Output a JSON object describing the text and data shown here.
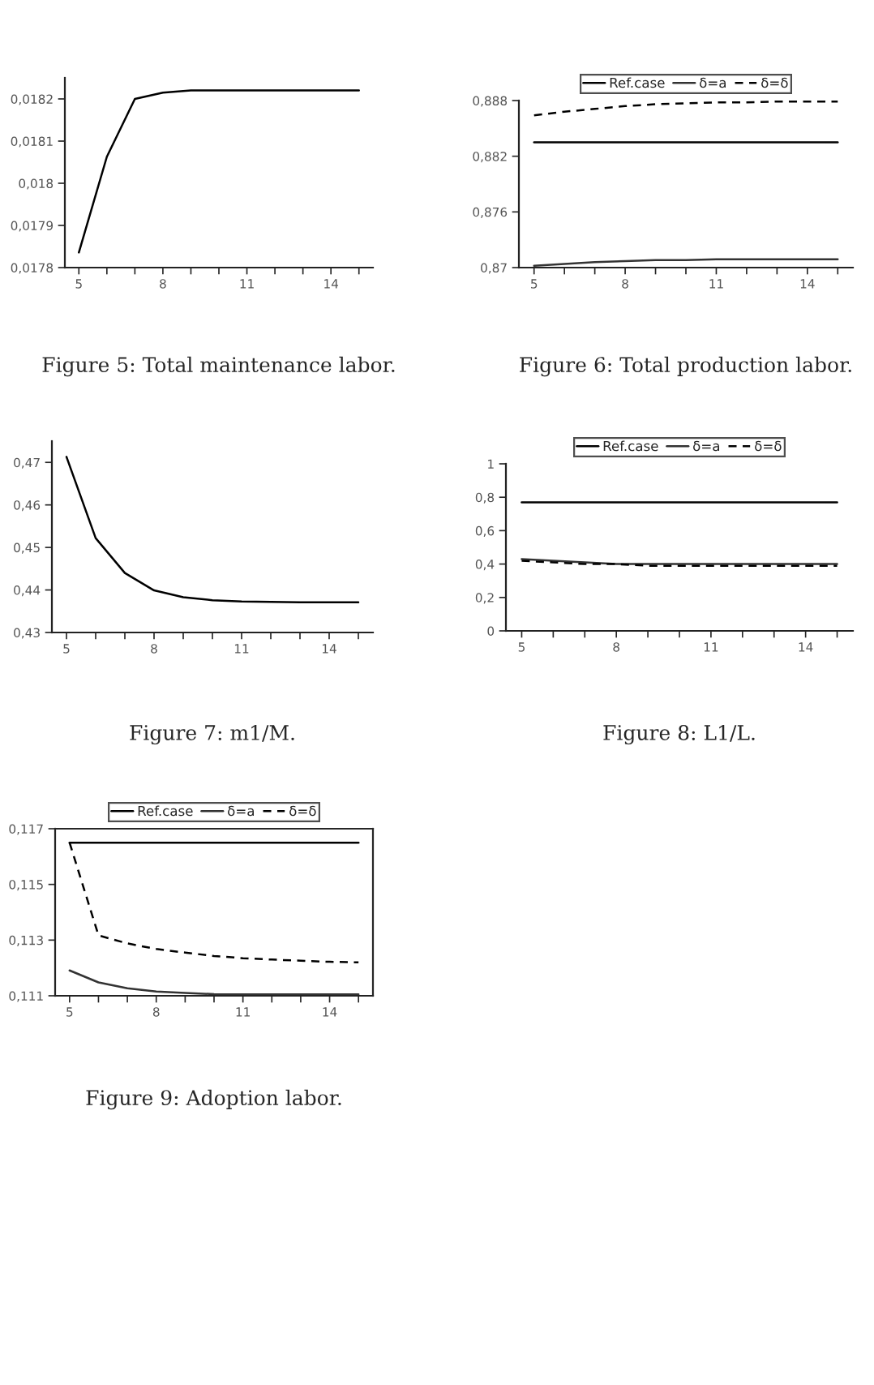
{
  "chart_data": [
    {
      "type": "line",
      "x": [
        5,
        6,
        7,
        8,
        9,
        10,
        11,
        12,
        13,
        14,
        15
      ],
      "xlim": [
        4.5,
        15.5
      ],
      "xticks": [
        5,
        {
          "value": 6,
          "label": null
        },
        {
          "value": 7,
          "label": null
        },
        8,
        {
          "value": 9,
          "label": null
        },
        {
          "value": 10,
          "label": null
        },
        11,
        {
          "value": 12,
          "label": null
        },
        {
          "value": 13,
          "label": null
        },
        14,
        {
          "value": 15,
          "label": null
        }
      ],
      "ylim": [
        0.0178,
        0.01825
      ],
      "yticks": [
        {
          "value": 0.0178,
          "label": "0,0178"
        },
        {
          "value": 0.0179,
          "label": "0,0179"
        },
        {
          "value": 0.018,
          "label": "0,018"
        },
        {
          "value": 0.0181,
          "label": "0,0181"
        },
        {
          "value": 0.0182,
          "label": "0,0182"
        }
      ],
      "series": [
        {
          "color": "#000000",
          "line_style": "solid",
          "values": [
            0.017836,
            0.018063,
            0.0182,
            0.018215,
            0.01822,
            0.01822,
            0.01822,
            0.01822,
            0.01822,
            0.01822,
            0.01822
          ]
        }
      ],
      "annotations": [
        "Figure 5: Total maintenance labor."
      ],
      "marker": "none",
      "grid": false,
      "legend": false
    },
    {
      "type": "line",
      "x": [
        5,
        6,
        7,
        8,
        9,
        10,
        11,
        12,
        13,
        14,
        15
      ],
      "xlim": [
        4.5,
        15.5
      ],
      "xticks": [
        5,
        {
          "value": 6,
          "label": null
        },
        {
          "value": 7,
          "label": null
        },
        8,
        {
          "value": 9,
          "label": null
        },
        {
          "value": 10,
          "label": null
        },
        11,
        {
          "value": 12,
          "label": null
        },
        {
          "value": 13,
          "label": null
        },
        14,
        {
          "value": 15,
          "label": null
        }
      ],
      "ylim": [
        0.87,
        0.888
      ],
      "yticks": [
        {
          "value": 0.87,
          "label": "0,87"
        },
        {
          "value": 0.876,
          "label": "0,876"
        },
        {
          "value": 0.882,
          "label": "0,882"
        },
        {
          "value": 0.888,
          "label": "0,888"
        }
      ],
      "series": [
        {
          "name": "Ref.case",
          "color": "#000000",
          "line_style": "solid",
          "values": [
            0.8835,
            0.8835,
            0.8835,
            0.8835,
            0.8835,
            0.8835,
            0.8835,
            0.8835,
            0.8835,
            0.8835,
            0.8835
          ]
        },
        {
          "name": "δ=a",
          "color": "#333333",
          "line_style": "solid",
          "values": [
            0.8702,
            0.8704,
            0.8706,
            0.8707,
            0.8708,
            0.8708,
            0.8709,
            0.8709,
            0.8709,
            0.8709,
            0.8709
          ]
        },
        {
          "name": "δ=δ",
          "color": "#000000",
          "line_style": "dashed",
          "values": [
            0.8864,
            0.8868,
            0.8871,
            0.8874,
            0.8876,
            0.8877,
            0.8878,
            0.8878,
            0.8879,
            0.8879,
            0.8879
          ]
        }
      ],
      "annotations": [
        "Figure 6: Total production labor."
      ],
      "marker": "none",
      "grid": false,
      "legend": "top"
    },
    {
      "type": "line",
      "x": [
        5,
        6,
        7,
        8,
        9,
        10,
        11,
        12,
        13,
        14,
        15
      ],
      "xlim": [
        4.5,
        15.5
      ],
      "xticks": [
        5,
        {
          "value": 6,
          "label": null
        },
        {
          "value": 7,
          "label": null
        },
        8,
        {
          "value": 9,
          "label": null
        },
        {
          "value": 10,
          "label": null
        },
        11,
        {
          "value": 12,
          "label": null
        },
        {
          "value": 13,
          "label": null
        },
        14,
        {
          "value": 15,
          "label": null
        }
      ],
      "ylim": [
        0.43,
        0.475
      ],
      "yticks": [
        {
          "value": 0.43,
          "label": "0,43"
        },
        {
          "value": 0.44,
          "label": "0,44"
        },
        {
          "value": 0.45,
          "label": "0,45"
        },
        {
          "value": 0.46,
          "label": "0,46"
        },
        {
          "value": 0.47,
          "label": "0,47"
        }
      ],
      "series": [
        {
          "color": "#000000",
          "line_style": "solid",
          "values": [
            0.4713,
            0.4522,
            0.444,
            0.4399,
            0.4383,
            0.4376,
            0.4373,
            0.4372,
            0.4371,
            0.4371,
            0.4371
          ]
        }
      ],
      "annotations": [
        "Figure 7: m1/M."
      ],
      "marker": "none",
      "grid": false,
      "legend": false
    },
    {
      "type": "line",
      "x": [
        5,
        6,
        7,
        8,
        9,
        10,
        11,
        12,
        13,
        14,
        15
      ],
      "xlim": [
        4.5,
        15.5
      ],
      "xticks": [
        5,
        {
          "value": 6,
          "label": null
        },
        {
          "value": 7,
          "label": null
        },
        8,
        {
          "value": 9,
          "label": null
        },
        {
          "value": 10,
          "label": null
        },
        11,
        {
          "value": 12,
          "label": null
        },
        {
          "value": 13,
          "label": null
        },
        14,
        {
          "value": 15,
          "label": null
        }
      ],
      "ylim": [
        0,
        1
      ],
      "yticks": [
        0,
        {
          "value": 0.2,
          "label": "0,2"
        },
        {
          "value": 0.4,
          "label": "0,4"
        },
        {
          "value": 0.6,
          "label": "0,6"
        },
        {
          "value": 0.8,
          "label": "0,8"
        },
        1
      ],
      "series": [
        {
          "name": "Ref.case",
          "color": "#000000",
          "line_style": "solid",
          "values": [
            0.77,
            0.77,
            0.77,
            0.77,
            0.77,
            0.77,
            0.77,
            0.77,
            0.77,
            0.77,
            0.77
          ]
        },
        {
          "name": "δ=a",
          "color": "#333333",
          "line_style": "solid",
          "values": [
            0.43,
            0.42,
            0.41,
            0.4,
            0.4,
            0.4,
            0.4,
            0.4,
            0.4,
            0.4,
            0.4
          ]
        },
        {
          "name": "δ=δ",
          "color": "#000000",
          "line_style": "dashed",
          "values": [
            0.42,
            0.41,
            0.4,
            0.4,
            0.39,
            0.39,
            0.39,
            0.39,
            0.39,
            0.39,
            0.39
          ]
        }
      ],
      "annotations": [
        "Figure 8: L1/L."
      ],
      "marker": "none",
      "grid": false,
      "legend": "top"
    },
    {
      "type": "line",
      "x": [
        5,
        6,
        7,
        8,
        9,
        10,
        11,
        12,
        13,
        14,
        15
      ],
      "xlim": [
        4.5,
        15.5
      ],
      "xticks": [
        5,
        {
          "value": 6,
          "label": null
        },
        {
          "value": 7,
          "label": null
        },
        8,
        {
          "value": 9,
          "label": null
        },
        {
          "value": 10,
          "label": null
        },
        11,
        {
          "value": 12,
          "label": null
        },
        {
          "value": 13,
          "label": null
        },
        14,
        {
          "value": 15,
          "label": null
        }
      ],
      "ylim": [
        0.111,
        0.117
      ],
      "yticks": [
        {
          "value": 0.111,
          "label": "0,111"
        },
        {
          "value": 0.113,
          "label": "0,113"
        },
        {
          "value": 0.115,
          "label": "0,115"
        },
        {
          "value": 0.117,
          "label": "0,117"
        }
      ],
      "series": [
        {
          "name": "Ref.case",
          "color": "#000000",
          "line_style": "solid",
          "values": [
            0.1165,
            0.1165,
            0.1165,
            0.1165,
            0.1165,
            0.1165,
            0.1165,
            0.1165,
            0.1165,
            0.1165,
            0.1165
          ]
        },
        {
          "name": "δ=a",
          "color": "#333333",
          "line_style": "solid",
          "values": [
            0.11191,
            0.11148,
            0.11127,
            0.11115,
            0.1111,
            0.11106,
            0.11105,
            0.11105,
            0.11105,
            0.11105,
            0.11105
          ]
        },
        {
          "name": "δ=δ",
          "color": "#000000",
          "line_style": "dashed",
          "values": [
            0.1165,
            0.11317,
            0.11288,
            0.11268,
            0.11255,
            0.11243,
            0.11235,
            0.1123,
            0.11226,
            0.11222,
            0.1122
          ]
        }
      ],
      "annotations": [
        "Figure 9: Adoption labor."
      ],
      "marker": "none",
      "grid": false,
      "legend": "top"
    }
  ]
}
